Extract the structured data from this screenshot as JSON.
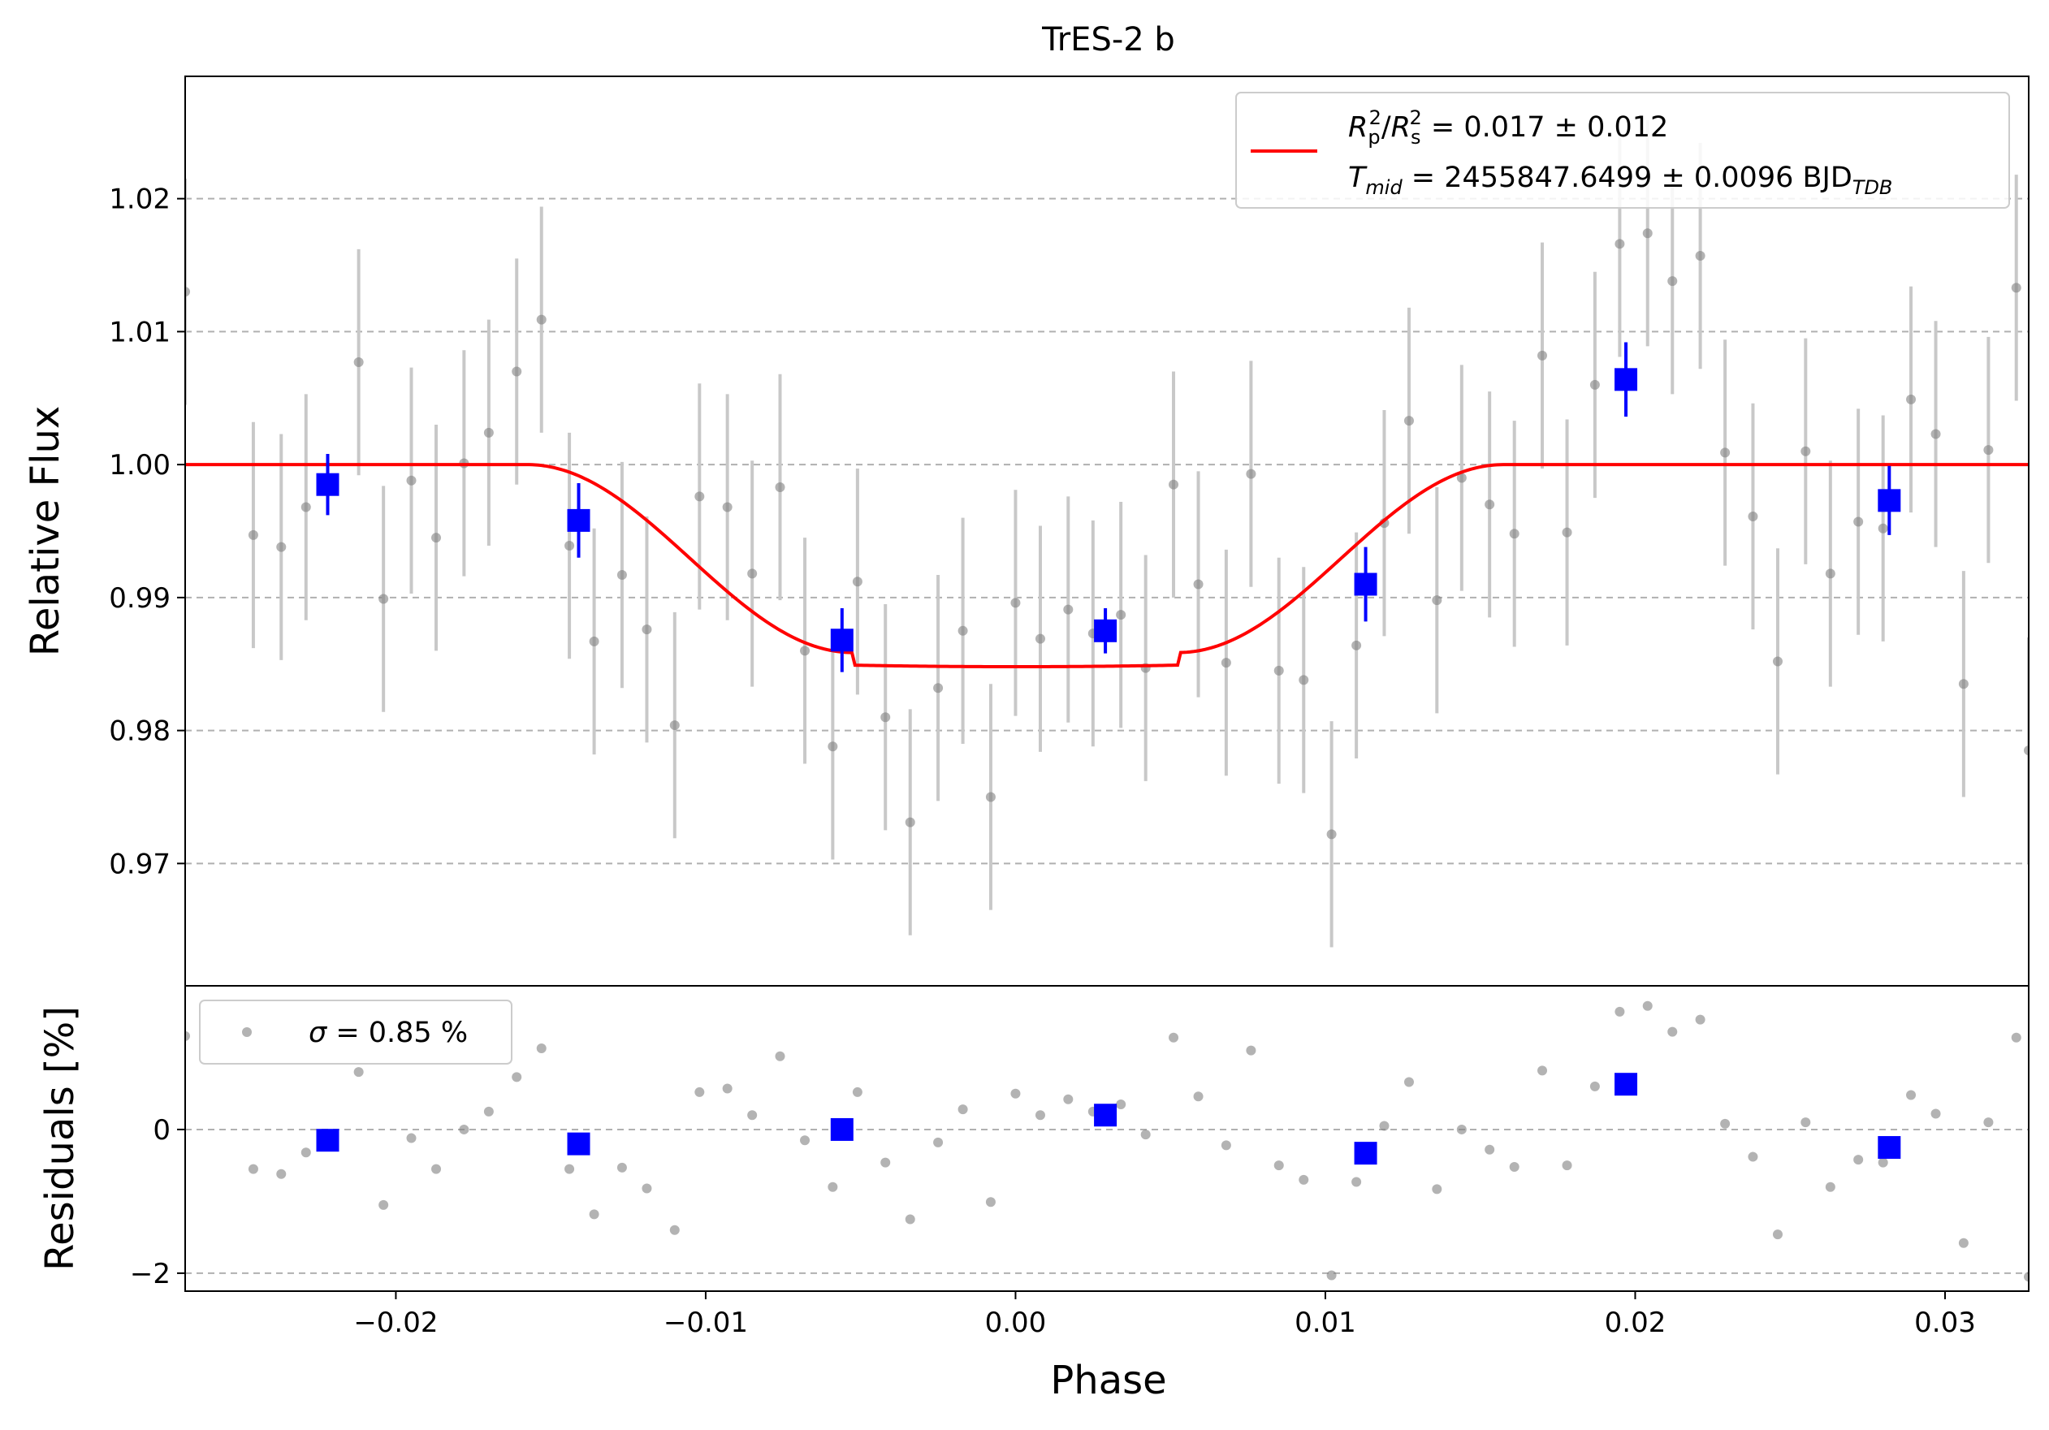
{
  "chart_data": {
    "type": "scatter",
    "title": "TrES-2 b",
    "xlabel": "Phase",
    "xlim": [
      -0.0268,
      0.0327
    ],
    "xticks": [
      -0.02,
      -0.01,
      0.0,
      0.01,
      0.02,
      0.03
    ],
    "xtick_labels": [
      "−0.02",
      "−0.01",
      "0.00",
      "0.01",
      "0.02",
      "0.03"
    ],
    "grid": "horizontal dashed",
    "panels": {
      "flux": {
        "ylabel": "Relative Flux",
        "ylim": [
          0.9608,
          1.0292
        ],
        "yticks": [
          0.97,
          0.98,
          0.99,
          1.0,
          1.01,
          1.02
        ],
        "ytick_labels": [
          "0.97",
          "0.98",
          "0.99",
          "1.00",
          "1.01",
          "1.02"
        ],
        "legend": {
          "placement": "top-right",
          "line1": {
            "lhs": "R",
            "lhs_sup": "2",
            "lhs_sub": "p",
            "slash": "/",
            "rhs": "R",
            "rhs_sup": "2",
            "rhs_sub": "s",
            "value": " = 0.017 ± 0.012"
          },
          "line2": {
            "sym": "T",
            "sub": "mid",
            "value": " = 2455847.6499 ± 0.0096 BJD",
            "unit_sub": "TDB"
          }
        },
        "model_params": {
          "depth": 0.0152,
          "t14": 0.0315,
          "t12": 0.0105
        },
        "data": {
          "x": [
            -0.0268,
            -0.0246,
            -0.0237,
            -0.0229,
            -0.0212,
            -0.0204,
            -0.0195,
            -0.0187,
            -0.0178,
            -0.017,
            -0.0161,
            -0.0153,
            -0.0144,
            -0.0136,
            -0.0127,
            -0.0119,
            -0.011,
            -0.0102,
            -0.0093,
            -0.0085,
            -0.0076,
            -0.0068,
            -0.0059,
            -0.0051,
            -0.0042,
            -0.0034,
            -0.0025,
            -0.0017,
            -0.0008,
            0.0,
            0.0008,
            0.0017,
            0.0025,
            0.0034,
            0.0042,
            0.0051,
            0.0059,
            0.0068,
            0.0076,
            0.0085,
            0.0093,
            0.0102,
            0.011,
            0.0119,
            0.0127,
            0.0136,
            0.0144,
            0.0153,
            0.0161,
            0.017,
            0.0178,
            0.0187,
            0.0195,
            0.0204,
            0.0212,
            0.0221,
            0.0229,
            0.0238,
            0.0246,
            0.0255,
            0.0263,
            0.0272,
            0.028,
            0.0289,
            0.0297,
            0.0306,
            0.0314,
            0.0323,
            0.0327
          ],
          "y": [
            1.013,
            0.9947,
            0.9938,
            0.9968,
            1.0077,
            0.9899,
            0.9988,
            0.9945,
            1.0001,
            1.0024,
            1.007,
            1.0109,
            0.9939,
            0.9867,
            0.9917,
            0.9876,
            0.9804,
            0.9976,
            0.9968,
            0.9918,
            0.9983,
            0.986,
            0.9788,
            0.9912,
            0.981,
            0.9731,
            0.9832,
            0.9875,
            0.975,
            0.9896,
            0.9869,
            0.9891,
            0.9873,
            0.9887,
            0.9847,
            0.9985,
            0.991,
            0.9851,
            0.9993,
            0.9845,
            0.9838,
            0.9722,
            0.9864,
            0.9956,
            1.0033,
            0.9898,
            0.999,
            0.997,
            0.9948,
            1.0082,
            0.9949,
            1.006,
            1.0166,
            1.0174,
            1.0138,
            1.0157,
            1.0009,
            0.9961,
            0.9852,
            1.001,
            0.9918,
            0.9957,
            0.9952,
            1.0049,
            1.0023,
            0.9835,
            1.0011,
            1.0133,
            0.9785
          ],
          "err": 0.0085
        },
        "binned": {
          "x": [
            -0.0222,
            -0.0141,
            -0.0056,
            0.0029,
            0.0113,
            0.0197,
            0.0282
          ],
          "y": [
            0.9985,
            0.9958,
            0.9868,
            0.9875,
            0.991,
            1.0064,
            0.9973
          ],
          "err": [
            0.0023,
            0.0028,
            0.0024,
            0.0017,
            0.0028,
            0.0028,
            0.0026
          ]
        }
      },
      "residuals": {
        "ylabel": "Residuals [%]",
        "ylim": [
          -2.25,
          2.0
        ],
        "yticks": [
          -2,
          0
        ],
        "ytick_labels": [
          "−2",
          "0"
        ],
        "legend": {
          "placement": "top-left",
          "sym": "σ",
          "value": " = 0.85 %"
        },
        "data": {
          "x": [
            -0.0268,
            -0.0246,
            -0.0237,
            -0.0229,
            -0.0212,
            -0.0204,
            -0.0195,
            -0.0187,
            -0.0178,
            -0.017,
            -0.0161,
            -0.0153,
            -0.0144,
            -0.0136,
            -0.0127,
            -0.0119,
            -0.011,
            -0.0102,
            -0.0093,
            -0.0085,
            -0.0076,
            -0.0068,
            -0.0059,
            -0.0051,
            -0.0042,
            -0.0034,
            -0.0025,
            -0.0017,
            -0.0008,
            0.0,
            0.0008,
            0.0017,
            0.0025,
            0.0034,
            0.0042,
            0.0051,
            0.0059,
            0.0068,
            0.0076,
            0.0085,
            0.0093,
            0.0102,
            0.011,
            0.0119,
            0.0127,
            0.0136,
            0.0144,
            0.0153,
            0.0161,
            0.017,
            0.0178,
            0.0187,
            0.0195,
            0.0204,
            0.0212,
            0.0221,
            0.0229,
            0.0238,
            0.0246,
            0.0255,
            0.0263,
            0.0272,
            0.028,
            0.0289,
            0.0297,
            0.0306,
            0.0314,
            0.0323,
            0.0327
          ],
          "y": [
            1.3,
            -0.55,
            -0.62,
            -0.32,
            0.8,
            -1.05,
            -0.12,
            -0.55,
            0.0,
            0.25,
            0.73,
            1.13,
            -0.55,
            -1.18,
            -0.53,
            -0.82,
            -1.4,
            0.52,
            0.57,
            0.2,
            1.02,
            -0.15,
            -0.8,
            0.52,
            -0.46,
            -1.25,
            -0.18,
            0.28,
            -1.01,
            0.5,
            0.2,
            0.42,
            0.25,
            0.35,
            -0.07,
            1.28,
            0.46,
            -0.22,
            1.1,
            -0.5,
            -0.7,
            -2.03,
            -0.73,
            0.05,
            0.66,
            -0.83,
            0.0,
            -0.28,
            -0.52,
            0.82,
            -0.5,
            0.6,
            1.64,
            1.72,
            1.36,
            1.53,
            0.08,
            -0.38,
            -1.46,
            0.1,
            -0.8,
            -0.42,
            -0.46,
            0.48,
            0.22,
            -1.58,
            0.1,
            1.28,
            -2.05
          ]
        },
        "binned": {
          "x": [
            -0.0222,
            -0.0141,
            -0.0056,
            0.0029,
            0.0113,
            0.0197,
            0.0282
          ],
          "y": [
            -0.15,
            -0.2,
            0.0,
            0.2,
            -0.33,
            0.63,
            -0.25
          ]
        }
      }
    },
    "colors": {
      "model": "#ff0000",
      "binned": "#0000ff",
      "data_point": "#808080",
      "error_bar": "#c8c8c8",
      "grid": "#b0b0b0"
    }
  }
}
